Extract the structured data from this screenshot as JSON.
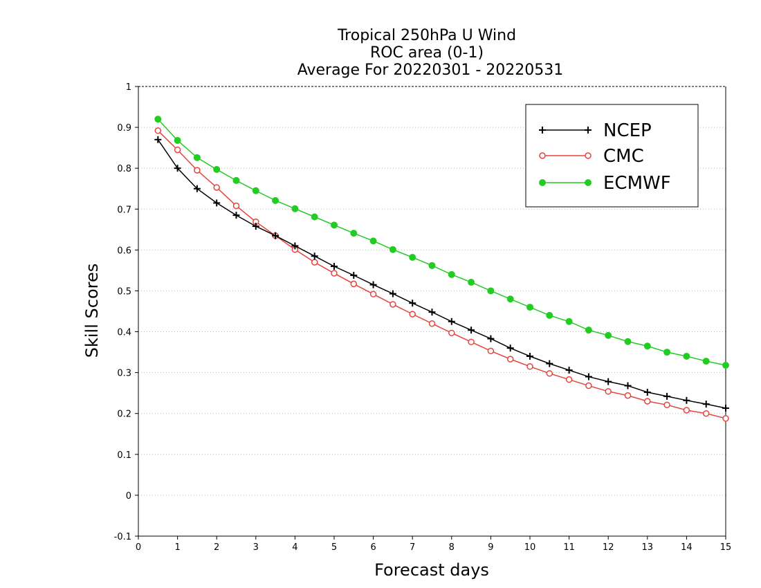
{
  "chart_data": {
    "type": "line",
    "title_lines": [
      "Tropical 250hPa U Wind",
      "ROC area (0-1)",
      "Average For 20220301 - 20220531"
    ],
    "xlabel": "Forecast days",
    "ylabel": "Skill Scores",
    "xlim": [
      0,
      15
    ],
    "ylim": [
      -0.1,
      1
    ],
    "x_ticks": [
      0,
      1,
      2,
      3,
      4,
      5,
      6,
      7,
      8,
      9,
      10,
      11,
      12,
      13,
      14,
      15
    ],
    "y_ticks": [
      -0.1,
      0,
      0.1,
      0.2,
      0.3,
      0.4,
      0.5,
      0.6,
      0.7,
      0.8,
      0.9,
      1
    ],
    "y_tick_labels": [
      "-0.1",
      "0",
      "0.1",
      "0.2",
      "0.3",
      "0.4",
      "0.5",
      "0.6",
      "0.7",
      "0.8",
      "0.9",
      "1"
    ],
    "grid": "horizontal dotted",
    "legend_position": "top-right",
    "x": [
      0.5,
      1,
      1.5,
      2,
      2.5,
      3,
      3.5,
      4,
      4.5,
      5,
      5.5,
      6,
      6.5,
      7,
      7.5,
      8,
      8.5,
      9,
      9.5,
      10,
      10.5,
      11,
      11.5,
      12,
      12.5,
      13,
      13.5,
      14,
      14.5,
      15
    ],
    "series": [
      {
        "name": "NCEP",
        "color": "#000000",
        "marker": "plus",
        "values": [
          0.87,
          0.8,
          0.75,
          0.715,
          0.685,
          0.658,
          0.635,
          0.61,
          0.585,
          0.56,
          0.538,
          0.515,
          0.493,
          0.47,
          0.448,
          0.425,
          0.404,
          0.383,
          0.36,
          0.34,
          0.322,
          0.306,
          0.29,
          0.278,
          0.268,
          0.252,
          0.242,
          0.232,
          0.223,
          0.213
        ]
      },
      {
        "name": "CMC",
        "color": "#e8413c",
        "marker": "open-circle",
        "values": [
          0.892,
          0.845,
          0.795,
          0.753,
          0.708,
          0.669,
          0.635,
          0.601,
          0.57,
          0.543,
          0.517,
          0.492,
          0.467,
          0.443,
          0.42,
          0.397,
          0.375,
          0.353,
          0.333,
          0.315,
          0.298,
          0.283,
          0.268,
          0.254,
          0.244,
          0.23,
          0.221,
          0.208,
          0.2,
          0.188
        ]
      },
      {
        "name": "ECMWF",
        "color": "#22cc22",
        "marker": "filled-circle",
        "values": [
          0.92,
          0.868,
          0.826,
          0.797,
          0.77,
          0.745,
          0.721,
          0.701,
          0.681,
          0.661,
          0.641,
          0.622,
          0.601,
          0.582,
          0.562,
          0.54,
          0.521,
          0.5,
          0.48,
          0.46,
          0.44,
          0.425,
          0.404,
          0.391,
          0.376,
          0.365,
          0.35,
          0.34,
          0.328,
          0.318
        ]
      }
    ]
  }
}
